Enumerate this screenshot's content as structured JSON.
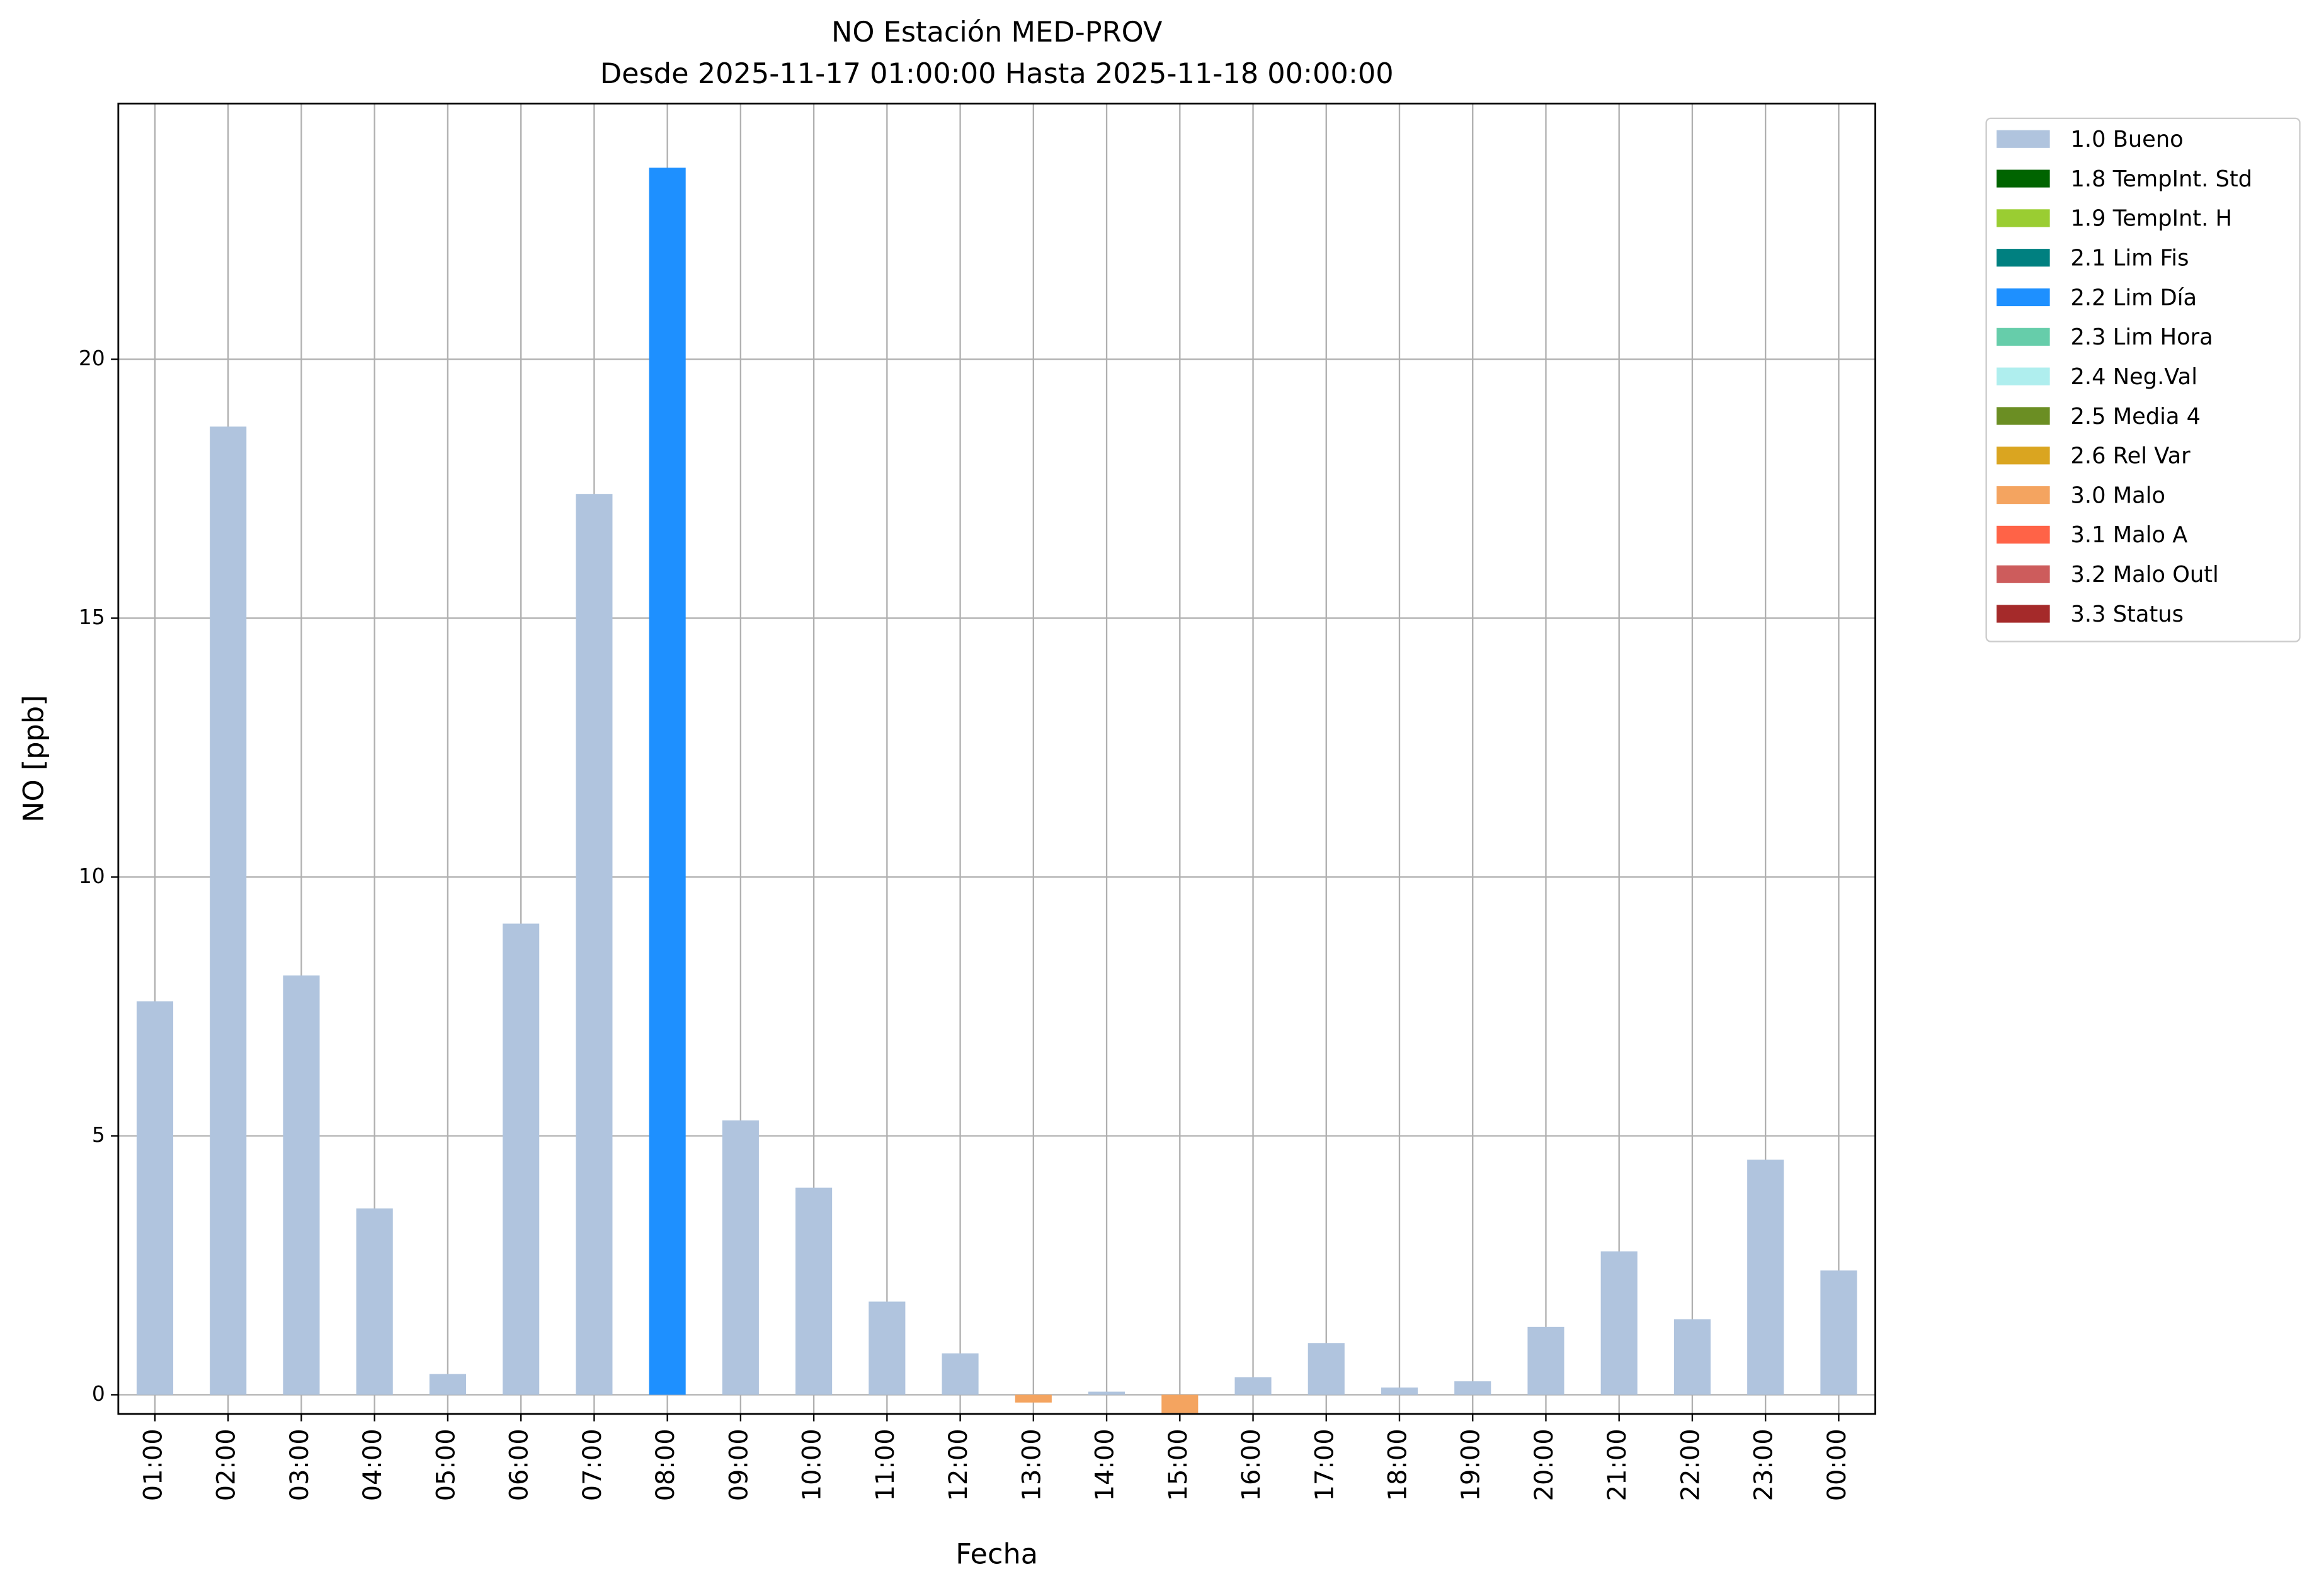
{
  "chart_data": {
    "type": "bar",
    "title": "NO Estación MED-PROV",
    "subtitle": "Desde 2025-11-17 01:00:00 Hasta 2025-11-18 00:00:00",
    "xlabel": "Fecha",
    "ylabel": "NO [ppb]",
    "categories": [
      "01:00",
      "02:00",
      "03:00",
      "04:00",
      "05:00",
      "06:00",
      "07:00",
      "08:00",
      "09:00",
      "10:00",
      "11:00",
      "12:00",
      "13:00",
      "14:00",
      "15:00",
      "16:00",
      "17:00",
      "18:00",
      "19:00",
      "20:00",
      "21:00",
      "22:00",
      "23:00",
      "00:00"
    ],
    "ylim": [
      -0.37,
      24.94
    ],
    "yticks": [
      0,
      5,
      10,
      15,
      20
    ],
    "grid": true,
    "legend": "outside-upper-right",
    "series": [
      {
        "name": "1.0 Bueno",
        "color": "#b0c4de",
        "values": [
          7.6,
          18.7,
          8.1,
          3.6,
          0.4,
          9.1,
          17.4,
          null,
          5.3,
          4.0,
          1.8,
          0.8,
          null,
          0.06,
          null,
          0.34,
          1.0,
          0.14,
          0.26,
          1.31,
          2.77,
          1.46,
          4.54,
          2.4
        ]
      },
      {
        "name": "1.8 TempInt. Std",
        "color": "#006400",
        "values": [
          null,
          null,
          null,
          null,
          null,
          null,
          null,
          null,
          null,
          null,
          null,
          null,
          null,
          null,
          null,
          null,
          null,
          null,
          null,
          null,
          null,
          null,
          null,
          null
        ]
      },
      {
        "name": "1.9 TempInt. H",
        "color": "#9acd32",
        "values": [
          null,
          null,
          null,
          null,
          null,
          null,
          null,
          null,
          null,
          null,
          null,
          null,
          null,
          null,
          null,
          null,
          null,
          null,
          null,
          null,
          null,
          null,
          null,
          null
        ]
      },
      {
        "name": "2.1 Lim Fis",
        "color": "#008080",
        "values": [
          null,
          null,
          null,
          null,
          null,
          null,
          null,
          null,
          null,
          null,
          null,
          null,
          null,
          null,
          null,
          null,
          null,
          null,
          null,
          null,
          null,
          null,
          null,
          null
        ]
      },
      {
        "name": "2.2 Lim Día",
        "color": "#1e90ff",
        "values": [
          null,
          null,
          null,
          null,
          null,
          null,
          null,
          23.7,
          null,
          null,
          null,
          null,
          null,
          null,
          null,
          null,
          null,
          null,
          null,
          null,
          null,
          null,
          null,
          null
        ]
      },
      {
        "name": "2.3 Lim Hora",
        "color": "#66cdaa",
        "values": [
          null,
          null,
          null,
          null,
          null,
          null,
          null,
          null,
          null,
          null,
          null,
          null,
          null,
          null,
          null,
          null,
          null,
          null,
          null,
          null,
          null,
          null,
          null,
          null
        ]
      },
      {
        "name": "2.4 Neg.Val",
        "color": "#afeeee",
        "values": [
          null,
          null,
          null,
          null,
          null,
          null,
          null,
          null,
          null,
          null,
          null,
          null,
          null,
          null,
          null,
          null,
          null,
          null,
          null,
          null,
          null,
          null,
          null,
          null
        ]
      },
      {
        "name": "2.5 Media 4",
        "color": "#6b8e23",
        "values": [
          null,
          null,
          null,
          null,
          null,
          null,
          null,
          null,
          null,
          null,
          null,
          null,
          null,
          null,
          null,
          null,
          null,
          null,
          null,
          null,
          null,
          null,
          null,
          null
        ]
      },
      {
        "name": "2.6 Rel Var",
        "color": "#daa520",
        "values": [
          null,
          null,
          null,
          null,
          null,
          null,
          null,
          null,
          null,
          null,
          null,
          null,
          null,
          null,
          null,
          null,
          null,
          null,
          null,
          null,
          null,
          null,
          null,
          null
        ]
      },
      {
        "name": "3.0 Malo",
        "color": "#f4a460",
        "values": [
          null,
          null,
          null,
          null,
          null,
          null,
          null,
          null,
          null,
          null,
          null,
          null,
          -0.15,
          null,
          -0.35,
          null,
          null,
          null,
          null,
          null,
          null,
          null,
          null,
          null
        ]
      },
      {
        "name": "3.1 Malo A",
        "color": "#ff6347",
        "values": [
          null,
          null,
          null,
          null,
          null,
          null,
          null,
          null,
          null,
          null,
          null,
          null,
          null,
          null,
          null,
          null,
          null,
          null,
          null,
          null,
          null,
          null,
          null,
          null
        ]
      },
      {
        "name": "3.2 Malo Outl",
        "color": "#cd5c5c",
        "values": [
          null,
          null,
          null,
          null,
          null,
          null,
          null,
          null,
          null,
          null,
          null,
          null,
          null,
          null,
          null,
          null,
          null,
          null,
          null,
          null,
          null,
          null,
          null,
          null
        ]
      },
      {
        "name": "3.3 Status",
        "color": "#a52a2a",
        "values": [
          null,
          null,
          null,
          null,
          null,
          null,
          null,
          null,
          null,
          null,
          null,
          null,
          null,
          null,
          null,
          null,
          null,
          null,
          null,
          null,
          null,
          null,
          null,
          null
        ]
      }
    ]
  }
}
